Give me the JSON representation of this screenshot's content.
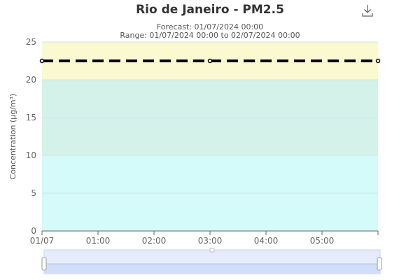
{
  "chart_data": {
    "type": "line",
    "title": "Rio de Janeiro - PM2.5",
    "subtitle_lines": [
      "Forecast: 01/07/2024 00:00",
      "Range: 01/07/2024 00:00 to 02/07/2024 00:00"
    ],
    "xlabel": "",
    "ylabel": "Concentration (μg/m³)",
    "x_tick_labels": [
      "01/07",
      "01:00",
      "02:00",
      "03:00",
      "04:00",
      "05:00"
    ],
    "xlim": [
      "00:00",
      "06:00"
    ],
    "ylim": [
      0,
      25
    ],
    "y_ticks": [
      0,
      5,
      10,
      15,
      20,
      25
    ],
    "grid": true,
    "bands": [
      {
        "from": 0,
        "to": 10,
        "color": "#d4fafa"
      },
      {
        "from": 10,
        "to": 20,
        "color": "#d4f2ea"
      },
      {
        "from": 20,
        "to": 25,
        "color": "#fbf9cf"
      }
    ],
    "series": [
      {
        "style": "dashed",
        "color": "#000000",
        "x": [
          "00:00",
          "03:00",
          "06:00"
        ],
        "values": [
          22.5,
          22.5,
          22.5
        ]
      }
    ]
  },
  "toolbar": {
    "download_icon": "download-icon"
  },
  "colors": {
    "axis": "#666666",
    "gridline": "#c9e6e4",
    "slider_fill": "#d2ddfa",
    "slider_track": "#e6ecfb"
  }
}
